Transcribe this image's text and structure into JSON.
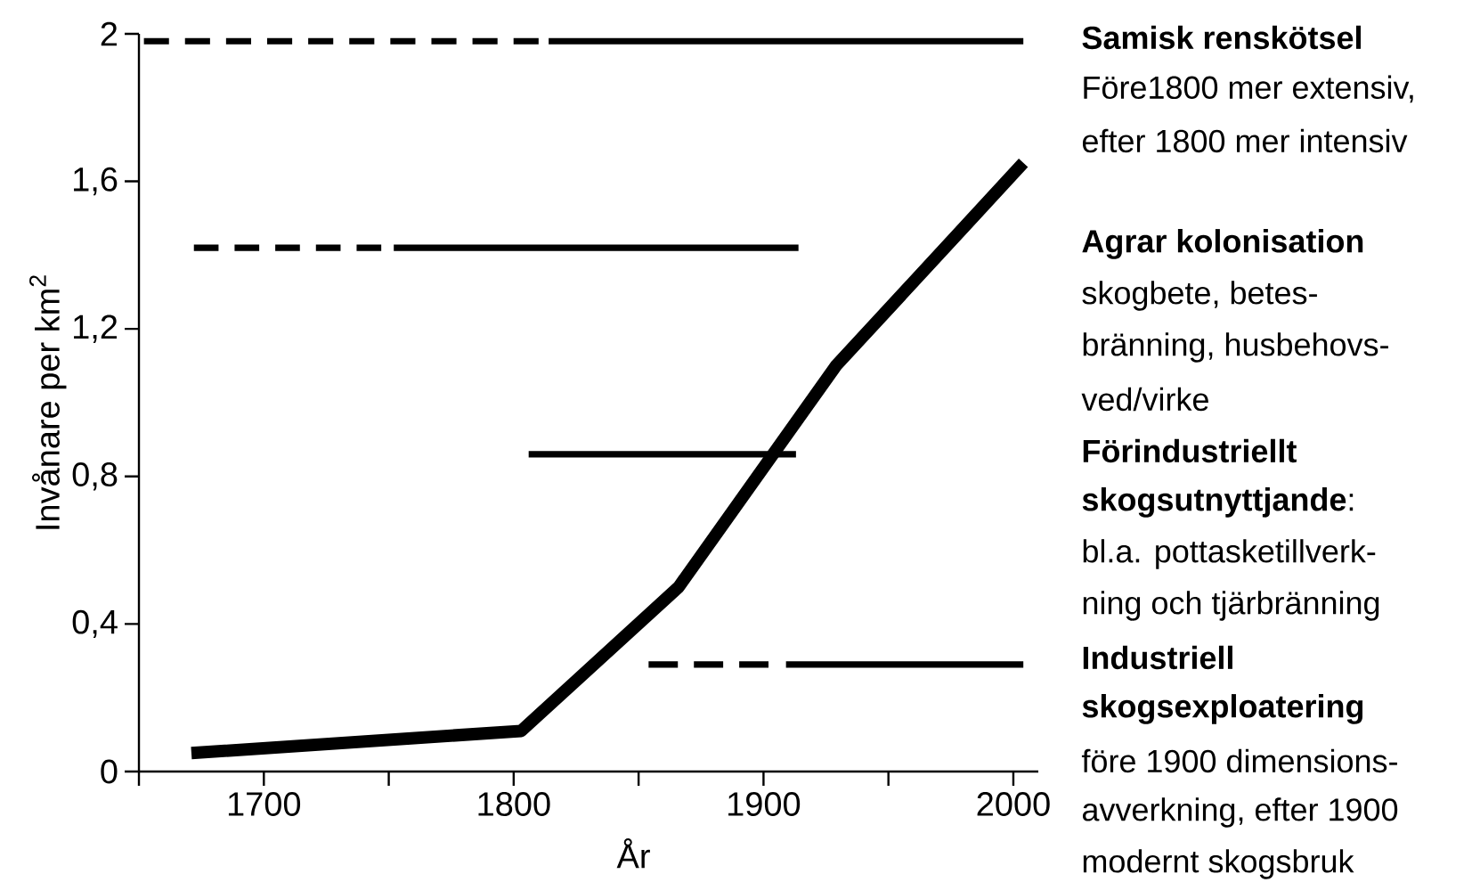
{
  "chart_data": {
    "type": "line",
    "xlabel": "År",
    "ylabel": "Invånare per km$^{2}$",
    "xlim": [
      1650,
      2010
    ],
    "ylim": [
      0,
      2
    ],
    "xticks": [
      {
        "value": 1650,
        "label": null
      },
      1700,
      {
        "value": 1750,
        "label": null
      },
      1800,
      {
        "value": 1850,
        "label": null
      },
      1900,
      {
        "value": 1950,
        "label": null
      },
      2000
    ],
    "yticks": [
      0,
      {
        "value": 0.4,
        "label": "0,4"
      },
      {
        "value": 0.8,
        "label": "0,8"
      },
      {
        "value": 1.2,
        "label": "1,2"
      },
      {
        "value": 1.6,
        "label": "1,6"
      },
      2
    ],
    "series": [
      {
        "x": [
          1671,
          1803,
          1866,
          1929,
          2004
        ],
        "values": [
          0.05,
          0.11,
          0.5,
          1.1,
          1.65
        ],
        "color": "#000000",
        "line_style": "solid"
      },
      {
        "x": [
          1652,
          1810
        ],
        "values": [
          1.98,
          1.98
        ],
        "color": "#000000",
        "line_style": "dashed"
      },
      {
        "x": [
          1814,
          2004
        ],
        "values": [
          1.98,
          1.98
        ],
        "color": "#000000",
        "line_style": "solid"
      },
      {
        "x": [
          1672,
          1747
        ],
        "values": [
          1.42,
          1.42
        ],
        "color": "#000000",
        "line_style": "dashed"
      },
      {
        "x": [
          1752,
          1914
        ],
        "values": [
          1.42,
          1.42
        ],
        "color": "#000000",
        "line_style": "solid"
      },
      {
        "x": [
          1806,
          1913
        ],
        "values": [
          0.86,
          0.86
        ],
        "color": "#000000",
        "line_style": "solid"
      },
      {
        "x": [
          1854,
          1902
        ],
        "values": [
          0.29,
          0.29
        ],
        "color": "#000000",
        "line_style": "dashed"
      },
      {
        "x": [
          1909,
          2004
        ],
        "values": [
          0.29,
          0.29
        ],
        "color": "#000000",
        "line_style": "solid"
      }
    ],
    "annotations": [
      "**Samisk renskötsel**",
      "Före1800 mer extensiv,",
      "efter 1800 mer  intensiv",
      "**Agrar kolonisation**",
      "skogbete, betes-",
      "bränning, husbehovs-",
      "ved/virke",
      "**Förindustriellt**",
      "**skogsutnyttjande**:",
      "bl.a. pottasketillverk-",
      "ning och tjärbränning",
      "**Industriell**",
      "**skogsexploatering**",
      "före 1900 dimensions-",
      "avverkning, efter 1900",
      "modernt skogsbruk"
    ]
  }
}
